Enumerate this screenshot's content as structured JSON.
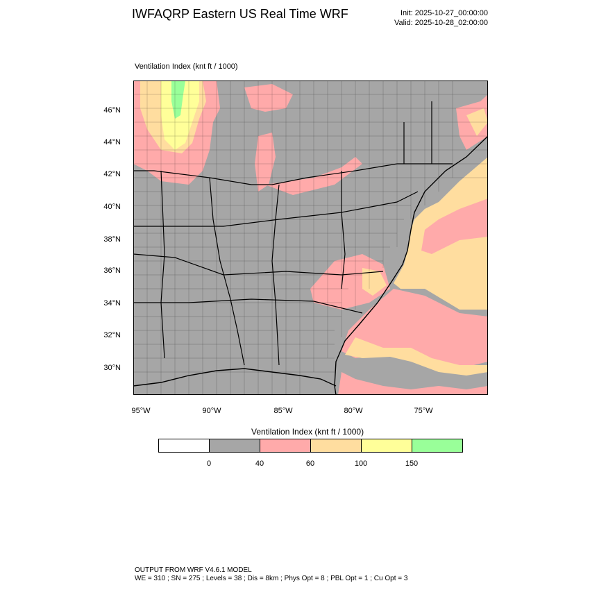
{
  "header": {
    "title": "IWFAQRP Eastern US Real Time WRF",
    "init": "Init: 2025-10-27_00:00:00",
    "valid": "Valid: 2025-10-28_02:00:00"
  },
  "panel": {
    "title": "Ventilation Index   (knt ft / 1000)"
  },
  "map": {
    "lat_labels": [
      "46°N",
      "44°N",
      "42°N",
      "40°N",
      "38°N",
      "36°N",
      "34°N",
      "32°N",
      "30°N"
    ],
    "lon_labels": [
      "95°W",
      "90°W",
      "85°W",
      "80°W",
      "75°W"
    ],
    "colors": {
      "land_low": "#a6a6a6",
      "band_40_60": "#ffaaaa",
      "band_60_100": "#ffdd9f",
      "band_100_150": "#ffff99",
      "band_150_plus": "#99ff99",
      "water_low": "#a6a6a6"
    }
  },
  "legend": {
    "title": "Ventilation Index  (knt ft / 1000)",
    "colors": [
      "#ffffff",
      "#a6a6a6",
      "#ffaaaa",
      "#ffdd9f",
      "#ffff99",
      "#99ff99"
    ],
    "labels": [
      "0",
      "40",
      "60",
      "100",
      "150"
    ]
  },
  "footer": {
    "line1": "OUTPUT FROM WRF V4.6.1 MODEL",
    "line2": "WE = 310 ; SN = 275 ; Levels = 38 ; Dis = 8km ; Phys Opt = 8 ; PBL Opt = 1 ; Cu Opt = 3"
  }
}
